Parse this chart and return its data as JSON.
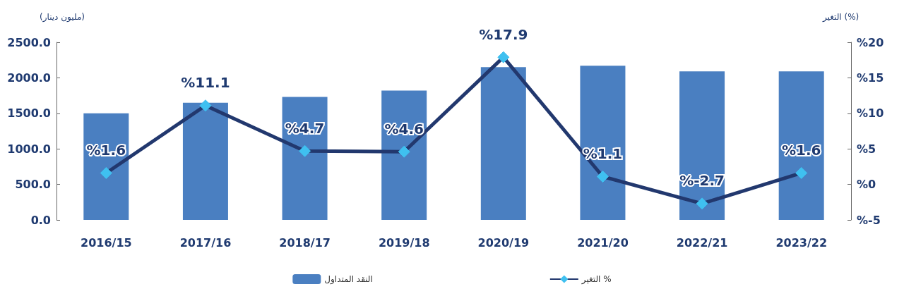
{
  "chart_data": {
    "type": "bar",
    "ylabel": "(مليون دينار)",
    "y2label": "التغير (%)",
    "categories": [
      "2016/15",
      "2017/16",
      "2018/17",
      "2019/18",
      "2020/19",
      "2021/20",
      "2022/21",
      "2023/22"
    ],
    "series": [
      {
        "name": "النقد المتداول",
        "color": "#4a7fc1",
        "values": [
          1500,
          1650,
          1730,
          1820,
          2150,
          2170,
          2090,
          2090
        ]
      },
      {
        "name": "التغير %",
        "type": "line",
        "axis": "y2",
        "color": "#22386e",
        "marker": "diamond",
        "values": [
          1.6,
          11.1,
          4.7,
          4.6,
          17.9,
          1.1,
          -2.7,
          1.6
        ],
        "value_labels": [
          "%1.6",
          "%11.1",
          "%4.7",
          "%4.6",
          "%17.9",
          "%1.1",
          "%-2.7",
          "%1.6"
        ]
      }
    ],
    "ylim": [
      0,
      2500
    ],
    "yticks": [
      {
        "value": 0,
        "label": "0.0"
      },
      {
        "value": 500,
        "label": "500.0"
      },
      {
        "value": 1000,
        "label": "1000.0"
      },
      {
        "value": 1500,
        "label": "1500.0"
      },
      {
        "value": 2000,
        "label": "2000.0"
      },
      {
        "value": 2500,
        "label": "2500.0"
      }
    ],
    "y2lim": [
      -5,
      20
    ],
    "y2ticks": [
      {
        "value": -5,
        "label": "%-5"
      },
      {
        "value": 0,
        "label": "%0"
      },
      {
        "value": 5,
        "label": "%5"
      },
      {
        "value": 10,
        "label": "%10"
      },
      {
        "value": 15,
        "label": "%15"
      },
      {
        "value": 20,
        "label": "%20"
      }
    ],
    "grid": false,
    "legend": "bottom"
  }
}
